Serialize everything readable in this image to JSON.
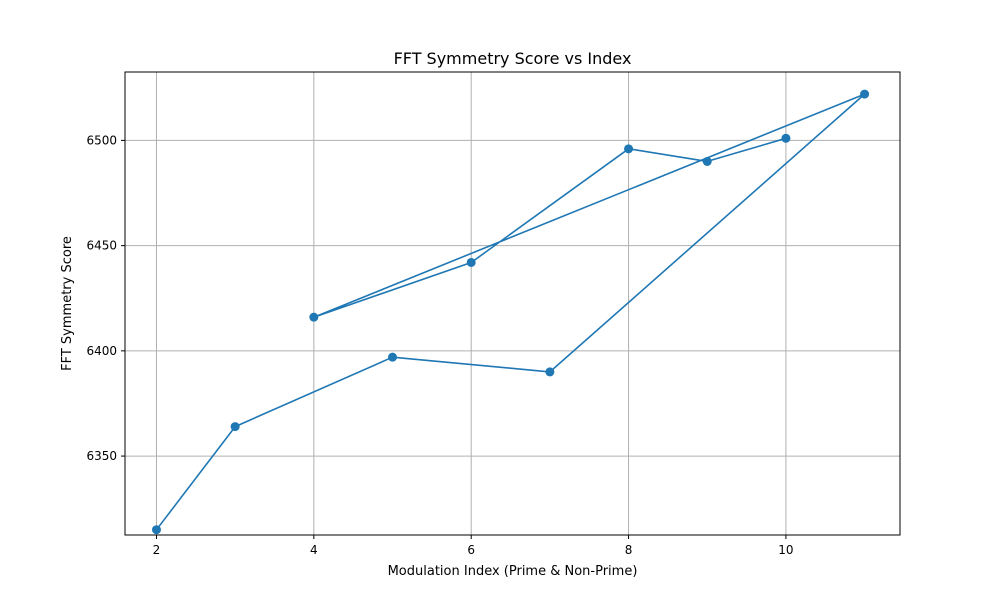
{
  "chart_data": {
    "type": "line",
    "title": "FFT Symmetry Score vs Index",
    "xlabel": "Modulation Index (Prime & Non-Prime)",
    "ylabel": "FFT Symmetry Score",
    "xlim": [
      1.6,
      11.45
    ],
    "ylim": [
      6312.5,
      6532.5
    ],
    "xticks": [
      2,
      4,
      6,
      8,
      10
    ],
    "yticks": [
      6350,
      6400,
      6450,
      6500
    ],
    "grid": true,
    "legend": "none",
    "series": [
      {
        "color": "#1f77b4",
        "marker": "circle",
        "points": [
          {
            "x": 2,
            "y": 6315
          },
          {
            "x": 3,
            "y": 6364
          },
          {
            "x": 5,
            "y": 6397
          },
          {
            "x": 7,
            "y": 6390
          },
          {
            "x": 11,
            "y": 6522
          },
          {
            "x": 4,
            "y": 6416
          },
          {
            "x": 6,
            "y": 6442
          },
          {
            "x": 8,
            "y": 6496
          },
          {
            "x": 9,
            "y": 6490
          },
          {
            "x": 10,
            "y": 6501
          }
        ]
      }
    ]
  }
}
